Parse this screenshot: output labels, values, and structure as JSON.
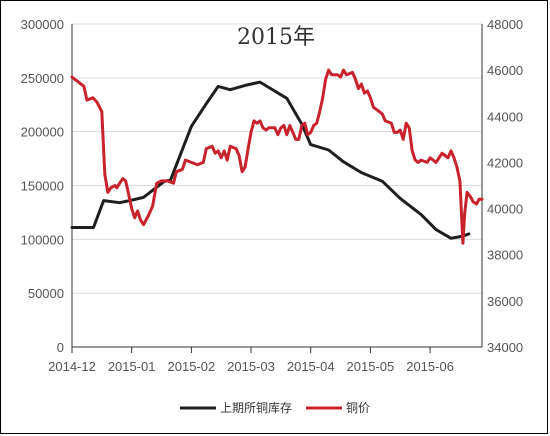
{
  "chart_data": {
    "type": "line",
    "title": "2015年",
    "x_ticks": [
      "2014-12",
      "2015-01",
      "2015-02",
      "2015-03",
      "2015-04",
      "2015-05",
      "2015-06"
    ],
    "x_range": [
      0,
      6.87
    ],
    "y_left": {
      "min": 0,
      "max": 300000,
      "ticks": [
        0,
        50000,
        100000,
        150000,
        200000,
        250000,
        300000
      ]
    },
    "y_right": {
      "min": 34000,
      "max": 48000,
      "ticks": [
        34000,
        36000,
        38000,
        40000,
        42000,
        44000,
        46000,
        48000
      ]
    },
    "grid": "horizontal",
    "legend_position": "bottom",
    "series": [
      {
        "name": "上期所铜库存",
        "axis": "left",
        "color": "#1f1f1f",
        "points": [
          [
            0,
            111000
          ],
          [
            0.36,
            111000
          ],
          [
            0.53,
            136000
          ],
          [
            0.8,
            134000
          ],
          [
            1.05,
            137000
          ],
          [
            1.2,
            139000
          ],
          [
            1.55,
            154000
          ],
          [
            1.65,
            155000
          ],
          [
            2.0,
            205000
          ],
          [
            2.25,
            226000
          ],
          [
            2.45,
            242000
          ],
          [
            2.65,
            239000
          ],
          [
            2.9,
            243000
          ],
          [
            3.15,
            246000
          ],
          [
            3.3,
            241000
          ],
          [
            3.6,
            231000
          ],
          [
            3.85,
            207000
          ],
          [
            4.0,
            188000
          ],
          [
            4.3,
            183000
          ],
          [
            4.55,
            172000
          ],
          [
            4.85,
            162000
          ],
          [
            5.2,
            154000
          ],
          [
            5.5,
            138000
          ],
          [
            5.85,
            123000
          ],
          [
            6.1,
            109000
          ],
          [
            6.35,
            101000
          ],
          [
            6.55,
            103000
          ],
          [
            6.65,
            105000
          ]
        ]
      },
      {
        "name": "铜价",
        "axis": "right",
        "color": "#c8232c",
        "points": [
          [
            0,
            45700
          ],
          [
            0.1,
            45500
          ],
          [
            0.2,
            45300
          ],
          [
            0.25,
            44700
          ],
          [
            0.35,
            44800
          ],
          [
            0.42,
            44600
          ],
          [
            0.5,
            44200
          ],
          [
            0.55,
            41500
          ],
          [
            0.6,
            40700
          ],
          [
            0.65,
            40900
          ],
          [
            0.72,
            41000
          ],
          [
            0.75,
            40900
          ],
          [
            0.8,
            41100
          ],
          [
            0.85,
            41300
          ],
          [
            0.9,
            41200
          ],
          [
            0.95,
            40600
          ],
          [
            1.0,
            40000
          ],
          [
            1.05,
            39600
          ],
          [
            1.1,
            39900
          ],
          [
            1.15,
            39500
          ],
          [
            1.2,
            39300
          ],
          [
            1.28,
            39700
          ],
          [
            1.35,
            40100
          ],
          [
            1.42,
            41100
          ],
          [
            1.5,
            41200
          ],
          [
            1.6,
            41200
          ],
          [
            1.7,
            41100
          ],
          [
            1.75,
            41600
          ],
          [
            1.85,
            41700
          ],
          [
            1.9,
            42100
          ],
          [
            2.0,
            42000
          ],
          [
            2.1,
            41900
          ],
          [
            2.2,
            42000
          ],
          [
            2.25,
            42600
          ],
          [
            2.35,
            42700
          ],
          [
            2.4,
            42400
          ],
          [
            2.45,
            42500
          ],
          [
            2.5,
            42200
          ],
          [
            2.55,
            42500
          ],
          [
            2.6,
            42100
          ],
          [
            2.65,
            42700
          ],
          [
            2.75,
            42600
          ],
          [
            2.8,
            42300
          ],
          [
            2.85,
            41600
          ],
          [
            2.9,
            41800
          ],
          [
            2.95,
            42600
          ],
          [
            3.0,
            43300
          ],
          [
            3.05,
            43800
          ],
          [
            3.1,
            43700
          ],
          [
            3.15,
            43800
          ],
          [
            3.2,
            43500
          ],
          [
            3.25,
            43400
          ],
          [
            3.3,
            43500
          ],
          [
            3.4,
            43500
          ],
          [
            3.45,
            43200
          ],
          [
            3.5,
            43500
          ],
          [
            3.55,
            43600
          ],
          [
            3.6,
            43200
          ],
          [
            3.65,
            43600
          ],
          [
            3.7,
            43300
          ],
          [
            3.75,
            43000
          ],
          [
            3.8,
            43000
          ],
          [
            3.85,
            43600
          ],
          [
            3.9,
            43700
          ],
          [
            3.95,
            43200
          ],
          [
            4.0,
            43300
          ],
          [
            4.05,
            43600
          ],
          [
            4.1,
            43700
          ],
          [
            4.15,
            44200
          ],
          [
            4.2,
            44800
          ],
          [
            4.25,
            45600
          ],
          [
            4.3,
            46000
          ],
          [
            4.35,
            45800
          ],
          [
            4.45,
            45800
          ],
          [
            4.5,
            45700
          ],
          [
            4.55,
            46000
          ],
          [
            4.6,
            45800
          ],
          [
            4.7,
            45900
          ],
          [
            4.75,
            45600
          ],
          [
            4.8,
            45200
          ],
          [
            4.85,
            45400
          ],
          [
            4.9,
            45000
          ],
          [
            4.95,
            45100
          ],
          [
            5.0,
            44800
          ],
          [
            5.05,
            44400
          ],
          [
            5.1,
            44300
          ],
          [
            5.15,
            44200
          ],
          [
            5.2,
            44100
          ],
          [
            5.25,
            43800
          ],
          [
            5.35,
            43700
          ],
          [
            5.4,
            43300
          ],
          [
            5.45,
            43300
          ],
          [
            5.5,
            43400
          ],
          [
            5.55,
            43000
          ],
          [
            5.6,
            43700
          ],
          [
            5.65,
            43500
          ],
          [
            5.7,
            42500
          ],
          [
            5.75,
            42100
          ],
          [
            5.8,
            42000
          ],
          [
            5.85,
            42100
          ],
          [
            5.95,
            42000
          ],
          [
            6.0,
            42200
          ],
          [
            6.05,
            42100
          ],
          [
            6.1,
            42000
          ],
          [
            6.15,
            42200
          ],
          [
            6.2,
            42400
          ],
          [
            6.25,
            42300
          ],
          [
            6.3,
            42200
          ],
          [
            6.35,
            42500
          ],
          [
            6.4,
            42200
          ],
          [
            6.45,
            41800
          ],
          [
            6.5,
            41200
          ],
          [
            6.55,
            38500
          ],
          [
            6.58,
            39800
          ],
          [
            6.62,
            40700
          ],
          [
            6.68,
            40500
          ],
          [
            6.72,
            40300
          ],
          [
            6.78,
            40200
          ],
          [
            6.82,
            40400
          ],
          [
            6.87,
            40400
          ]
        ]
      }
    ]
  }
}
